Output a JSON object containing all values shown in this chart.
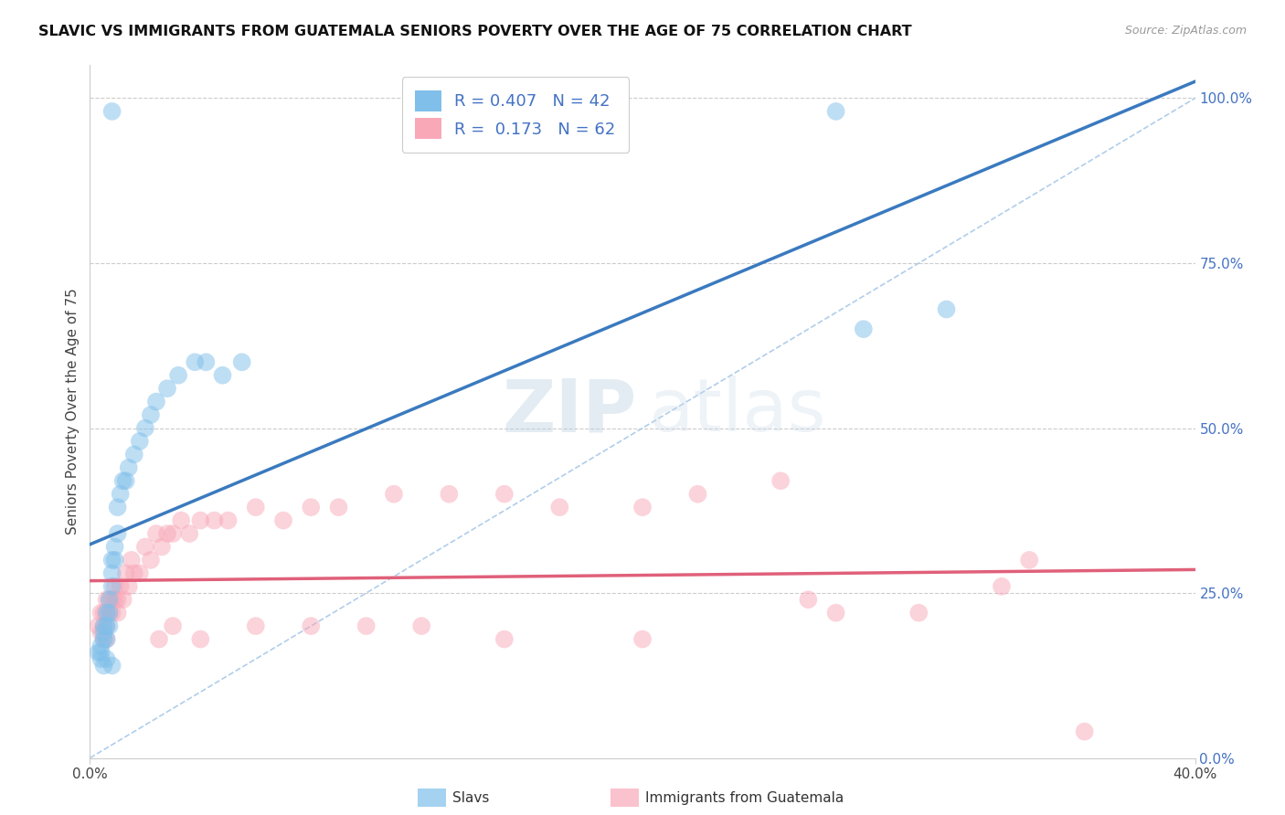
{
  "title": "SLAVIC VS IMMIGRANTS FROM GUATEMALA SENIORS POVERTY OVER THE AGE OF 75 CORRELATION CHART",
  "source": "Source: ZipAtlas.com",
  "ylabel": "Seniors Poverty Over the Age of 75",
  "xmin": 0.0,
  "xmax": 0.4,
  "ymin": 0.0,
  "ymax": 1.05,
  "slavs_R": 0.407,
  "slavs_N": 42,
  "guatemala_R": 0.173,
  "guatemala_N": 62,
  "slavs_color": "#7fbfea",
  "guatemala_color": "#f9a8b8",
  "slavs_line_color": "#3a7abf",
  "guatemala_line_color": "#e0607a",
  "diagonal_color": "#a8c8e8",
  "background_color": "#ffffff",
  "watermark_zip": "ZIP",
  "watermark_atlas": "atlas",
  "slavs_x": [
    0.003,
    0.004,
    0.004,
    0.005,
    0.005,
    0.005,
    0.006,
    0.006,
    0.006,
    0.007,
    0.007,
    0.007,
    0.008,
    0.008,
    0.008,
    0.009,
    0.009,
    0.01,
    0.01,
    0.011,
    0.012,
    0.013,
    0.014,
    0.016,
    0.018,
    0.02,
    0.022,
    0.024,
    0.028,
    0.032,
    0.038,
    0.042,
    0.048,
    0.055,
    0.004,
    0.005,
    0.006,
    0.008,
    0.008,
    0.27,
    0.28,
    0.31
  ],
  "slavs_y": [
    0.16,
    0.17,
    0.16,
    0.18,
    0.19,
    0.2,
    0.18,
    0.2,
    0.22,
    0.2,
    0.22,
    0.24,
    0.26,
    0.28,
    0.3,
    0.3,
    0.32,
    0.34,
    0.38,
    0.4,
    0.42,
    0.42,
    0.44,
    0.46,
    0.48,
    0.5,
    0.52,
    0.54,
    0.56,
    0.58,
    0.6,
    0.6,
    0.58,
    0.6,
    0.15,
    0.14,
    0.15,
    0.14,
    0.98,
    0.98,
    0.65,
    0.68
  ],
  "guatemala_x": [
    0.003,
    0.004,
    0.004,
    0.005,
    0.005,
    0.006,
    0.006,
    0.006,
    0.007,
    0.007,
    0.008,
    0.008,
    0.009,
    0.009,
    0.01,
    0.01,
    0.011,
    0.012,
    0.013,
    0.014,
    0.015,
    0.016,
    0.018,
    0.02,
    0.022,
    0.024,
    0.026,
    0.028,
    0.03,
    0.033,
    0.036,
    0.04,
    0.045,
    0.05,
    0.06,
    0.07,
    0.08,
    0.09,
    0.11,
    0.13,
    0.15,
    0.17,
    0.2,
    0.22,
    0.25,
    0.27,
    0.3,
    0.33,
    0.025,
    0.03,
    0.04,
    0.06,
    0.08,
    0.1,
    0.12,
    0.15,
    0.2,
    0.34,
    0.36,
    0.005,
    0.006,
    0.26
  ],
  "guatemala_y": [
    0.2,
    0.19,
    0.22,
    0.2,
    0.22,
    0.2,
    0.22,
    0.24,
    0.22,
    0.24,
    0.22,
    0.24,
    0.24,
    0.26,
    0.22,
    0.24,
    0.26,
    0.24,
    0.28,
    0.26,
    0.3,
    0.28,
    0.28,
    0.32,
    0.3,
    0.34,
    0.32,
    0.34,
    0.34,
    0.36,
    0.34,
    0.36,
    0.36,
    0.36,
    0.38,
    0.36,
    0.38,
    0.38,
    0.4,
    0.4,
    0.4,
    0.38,
    0.38,
    0.4,
    0.42,
    0.22,
    0.22,
    0.26,
    0.18,
    0.2,
    0.18,
    0.2,
    0.2,
    0.2,
    0.2,
    0.18,
    0.18,
    0.3,
    0.04,
    0.18,
    0.18,
    0.24
  ]
}
